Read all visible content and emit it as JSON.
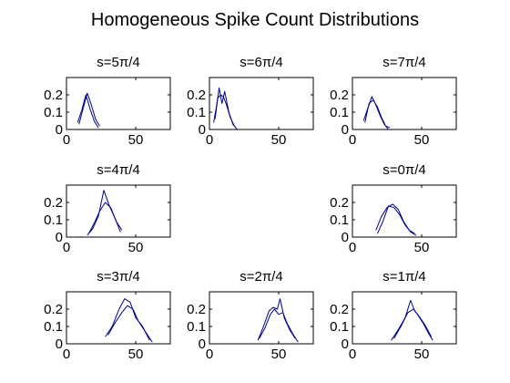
{
  "figure": {
    "title": "Homogeneous Spike Count Distributions"
  },
  "colors": {
    "line": "#00008b",
    "axes": "#000000",
    "background": "#ffffff"
  },
  "chart_data": [
    {
      "type": "line",
      "title": "s=5π/4",
      "xlim": [
        0,
        75
      ],
      "ylim": [
        0,
        0.3
      ],
      "xticks": [
        "0",
        "50"
      ],
      "yticks": [
        "0",
        "0.1",
        "0.2"
      ],
      "series": [
        {
          "values": [
            [
              8,
              0.04
            ],
            [
              11,
              0.11
            ],
            [
              14,
              0.2
            ],
            [
              17,
              0.12
            ],
            [
              20,
              0.05
            ],
            [
              23,
              0.01
            ]
          ]
        },
        {
          "values": [
            [
              9,
              0.03
            ],
            [
              12,
              0.12
            ],
            [
              15,
              0.21
            ],
            [
              18,
              0.14
            ],
            [
              21,
              0.06
            ],
            [
              24,
              0.02
            ]
          ]
        }
      ]
    },
    {
      "type": "line",
      "title": "s=6π/4",
      "xlim": [
        0,
        75
      ],
      "ylim": [
        0,
        0.3
      ],
      "xticks": [
        "0",
        "50"
      ],
      "yticks": [
        "0",
        "0.1",
        "0.2"
      ],
      "series": [
        {
          "values": [
            [
              3,
              0.04
            ],
            [
              5,
              0.13
            ],
            [
              7,
              0.24
            ],
            [
              9,
              0.15
            ],
            [
              11,
              0.22
            ],
            [
              14,
              0.1
            ],
            [
              17,
              0.03
            ],
            [
              20,
              0.0
            ]
          ]
        },
        {
          "values": [
            [
              4,
              0.06
            ],
            [
              6,
              0.18
            ],
            [
              8,
              0.2
            ],
            [
              10,
              0.19
            ],
            [
              12,
              0.15
            ],
            [
              15,
              0.07
            ],
            [
              18,
              0.02
            ]
          ]
        }
      ]
    },
    {
      "type": "line",
      "title": "s=7π/4",
      "xlim": [
        0,
        75
      ],
      "ylim": [
        0,
        0.3
      ],
      "xticks": [
        "0",
        "50"
      ],
      "yticks": [
        "0",
        "0.1",
        "0.2"
      ],
      "series": [
        {
          "values": [
            [
              8,
              0.05
            ],
            [
              11,
              0.12
            ],
            [
              14,
              0.19
            ],
            [
              17,
              0.14
            ],
            [
              20,
              0.08
            ],
            [
              23,
              0.03
            ],
            [
              26,
              0.0
            ]
          ]
        },
        {
          "values": [
            [
              9,
              0.04
            ],
            [
              12,
              0.15
            ],
            [
              15,
              0.17
            ],
            [
              18,
              0.13
            ],
            [
              21,
              0.07
            ],
            [
              24,
              0.02
            ],
            [
              27,
              0.01
            ]
          ]
        }
      ]
    },
    {
      "type": "line",
      "title": "s=4π/4",
      "xlim": [
        0,
        75
      ],
      "ylim": [
        0,
        0.3
      ],
      "xticks": [
        "0",
        "50"
      ],
      "yticks": [
        "0",
        "0.1",
        "0.2"
      ],
      "series": [
        {
          "values": [
            [
              15,
              0.01
            ],
            [
              19,
              0.05
            ],
            [
              23,
              0.12
            ],
            [
              27,
              0.27
            ],
            [
              31,
              0.18
            ],
            [
              35,
              0.11
            ],
            [
              39,
              0.03
            ]
          ]
        },
        {
          "values": [
            [
              16,
              0.02
            ],
            [
              20,
              0.08
            ],
            [
              24,
              0.15
            ],
            [
              28,
              0.2
            ],
            [
              32,
              0.17
            ],
            [
              36,
              0.09
            ],
            [
              40,
              0.04
            ]
          ]
        }
      ]
    },
    null,
    {
      "type": "line",
      "title": "s=0π/4",
      "xlim": [
        0,
        75
      ],
      "ylim": [
        0,
        0.3
      ],
      "xticks": [
        "0",
        "50"
      ],
      "yticks": [
        "0",
        "0.1",
        "0.2"
      ],
      "series": [
        {
          "values": [
            [
              17,
              0.04
            ],
            [
              21,
              0.12
            ],
            [
              25,
              0.17
            ],
            [
              29,
              0.19
            ],
            [
              33,
              0.16
            ],
            [
              37,
              0.09
            ],
            [
              41,
              0.04
            ],
            [
              45,
              0.02
            ]
          ]
        },
        {
          "values": [
            [
              18,
              0.02
            ],
            [
              22,
              0.09
            ],
            [
              26,
              0.18
            ],
            [
              30,
              0.17
            ],
            [
              34,
              0.13
            ],
            [
              38,
              0.07
            ],
            [
              42,
              0.03
            ],
            [
              46,
              0.01
            ]
          ]
        }
      ]
    },
    {
      "type": "line",
      "title": "s=3π/4",
      "xlim": [
        0,
        75
      ],
      "ylim": [
        0,
        0.3
      ],
      "xticks": [
        "0",
        "50"
      ],
      "yticks": [
        "0",
        "0.1",
        "0.2"
      ],
      "series": [
        {
          "values": [
            [
              28,
              0.04
            ],
            [
              33,
              0.1
            ],
            [
              38,
              0.2
            ],
            [
              42,
              0.26
            ],
            [
              46,
              0.24
            ],
            [
              50,
              0.15
            ],
            [
              55,
              0.1
            ],
            [
              60,
              0.02
            ]
          ]
        },
        {
          "values": [
            [
              30,
              0.05
            ],
            [
              35,
              0.12
            ],
            [
              40,
              0.18
            ],
            [
              44,
              0.22
            ],
            [
              48,
              0.2
            ],
            [
              52,
              0.13
            ],
            [
              57,
              0.07
            ],
            [
              62,
              0.01
            ]
          ]
        }
      ]
    },
    {
      "type": "line",
      "title": "s=2π/4",
      "xlim": [
        0,
        75
      ],
      "ylim": [
        0,
        0.3
      ],
      "xticks": [
        "0",
        "50"
      ],
      "yticks": [
        "0",
        "0.1",
        "0.2"
      ],
      "series": [
        {
          "values": [
            [
              35,
              0.02
            ],
            [
              39,
              0.1
            ],
            [
              43,
              0.19
            ],
            [
              46,
              0.21
            ],
            [
              49,
              0.2
            ],
            [
              51,
              0.26
            ],
            [
              54,
              0.15
            ],
            [
              58,
              0.08
            ],
            [
              62,
              0.03
            ]
          ]
        },
        {
          "values": [
            [
              36,
              0.03
            ],
            [
              40,
              0.09
            ],
            [
              44,
              0.17
            ],
            [
              47,
              0.2
            ],
            [
              50,
              0.17
            ],
            [
              53,
              0.18
            ],
            [
              56,
              0.12
            ],
            [
              60,
              0.06
            ],
            [
              64,
              0.01
            ]
          ]
        }
      ]
    },
    {
      "type": "line",
      "title": "s=1π/4",
      "xlim": [
        0,
        75
      ],
      "ylim": [
        0,
        0.3
      ],
      "xticks": [
        "0",
        "50"
      ],
      "yticks": [
        "0",
        "0.1",
        "0.2"
      ],
      "series": [
        {
          "values": [
            [
              28,
              0.02
            ],
            [
              33,
              0.08
            ],
            [
              38,
              0.15
            ],
            [
              42,
              0.25
            ],
            [
              45,
              0.19
            ],
            [
              49,
              0.15
            ],
            [
              53,
              0.1
            ],
            [
              57,
              0.04
            ]
          ]
        },
        {
          "values": [
            [
              30,
              0.03
            ],
            [
              35,
              0.1
            ],
            [
              40,
              0.18
            ],
            [
              44,
              0.2
            ],
            [
              47,
              0.17
            ],
            [
              51,
              0.12
            ],
            [
              55,
              0.06
            ],
            [
              58,
              0.02
            ]
          ]
        }
      ]
    }
  ]
}
